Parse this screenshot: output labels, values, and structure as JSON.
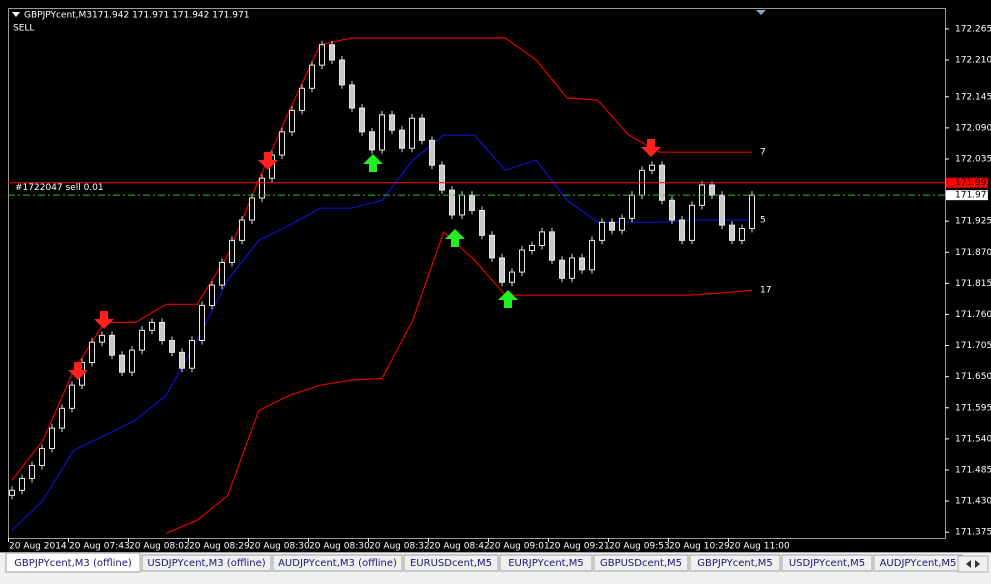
{
  "chart_data": {
    "type": "renko",
    "title": "GBPJPYcent,M3",
    "header_prices": "171.942 171.971 171.942 171.971",
    "signal": "SELL",
    "bar_color": "#c8c8c8",
    "x_labels": [
      "20 Aug 2014",
      "20 Aug 07:43",
      "20 Aug 08:02",
      "20 Aug 08:29",
      "20 Aug 08:30",
      "20 Aug 08:30",
      "20 Aug 08:32",
      "20 Aug 08:42",
      "20 Aug 09:01",
      "20 Aug 09:21",
      "20 Aug 09:53",
      "20 Aug 10:29",
      "20 Aug 11:00"
    ],
    "ylim": [
      171.37,
      172.302
    ],
    "yticks": [
      172.265,
      {
        "value": 172.21,
        "label": "172.210"
      },
      172.145,
      {
        "value": 172.09,
        "label": "172.090"
      },
      172.035,
      171.925,
      {
        "value": 171.87,
        "label": "171.870"
      },
      171.815,
      {
        "value": 171.76,
        "label": "171.760"
      },
      171.705,
      {
        "value": 171.65,
        "label": "171.650"
      },
      171.595,
      {
        "value": 171.54,
        "label": "171.540"
      },
      171.485,
      {
        "value": 171.43,
        "label": "171.430"
      },
      171.375
    ],
    "values": [
      171.449,
      171.47,
      171.493,
      171.523,
      171.559,
      171.594,
      171.635,
      171.675,
      171.711,
      171.723,
      171.688,
      171.658,
      171.697,
      171.732,
      171.746,
      171.714,
      171.693,
      171.665,
      171.714,
      171.776,
      171.812,
      171.852,
      171.891,
      171.927,
      171.966,
      172.001,
      172.042,
      172.083,
      172.121,
      172.16,
      172.201,
      172.237,
      172.21,
      172.166,
      172.125,
      172.083,
      172.051,
      172.113,
      172.086,
      172.054,
      172.107,
      172.068,
      172.024,
      171.98,
      171.936,
      171.971,
      171.944,
      171.9,
      171.86,
      171.817,
      171.835,
      171.874,
      171.882,
      171.906,
      171.856,
      171.824,
      171.86,
      171.839,
      171.891,
      171.923,
      171.909,
      171.93,
      171.971,
      172.015,
      172.024,
      171.962,
      171.927,
      171.891,
      171.953,
      171.989,
      171.971,
      171.918,
      171.891,
      171.912,
      171.971
    ],
    "lines": [
      {
        "color": "#e00000",
        "end_label": "7",
        "values": [
          171.467,
          171.537,
          171.661,
          171.746,
          171.746,
          171.778,
          171.778,
          171.865,
          171.998,
          172.121,
          172.237,
          172.249,
          172.249,
          172.249,
          172.249,
          172.249,
          172.249,
          172.21,
          172.143,
          172.139,
          172.077,
          172.047,
          172.047,
          172.047,
          172.047
        ]
      },
      {
        "color": "#1010c8",
        "end_label": "5",
        "values": [
          171.378,
          171.431,
          171.52,
          171.546,
          171.573,
          171.617,
          171.714,
          171.821,
          171.891,
          171.918,
          171.948,
          171.948,
          171.962,
          172.033,
          172.077,
          172.077,
          172.015,
          172.033,
          171.962,
          171.923,
          171.923,
          171.923,
          171.927,
          171.927,
          171.927
        ]
      },
      {
        "color": "#e00000",
        "end_label": "17",
        "values": [
          null,
          null,
          null,
          null,
          null,
          171.373,
          171.396,
          171.44,
          171.59,
          171.617,
          171.635,
          171.644,
          171.647,
          171.75,
          171.906,
          171.856,
          171.794,
          171.794,
          171.794,
          171.794,
          171.794,
          171.794,
          171.794,
          171.798,
          171.803
        ]
      }
    ],
    "order_line": {
      "label": "#1722047 sell 0.01",
      "price": 171.993,
      "color": "#ff0000"
    },
    "bid_line": {
      "price": 171.971,
      "color": "#2db82d"
    }
  },
  "tabs": {
    "active": 0,
    "items": [
      "GBPJPYcent,M3 (offline)",
      "USDJPYcent,M3 (offline)",
      "AUDJPYcent,M3 (offline)",
      "EURUSDcent,M5",
      "EURJPYcent,M5",
      "GBPUSDcent,M5",
      "GBPJPYcent,M5",
      "USDJPYcent,M5",
      "AUDJPYcent,M5"
    ]
  }
}
